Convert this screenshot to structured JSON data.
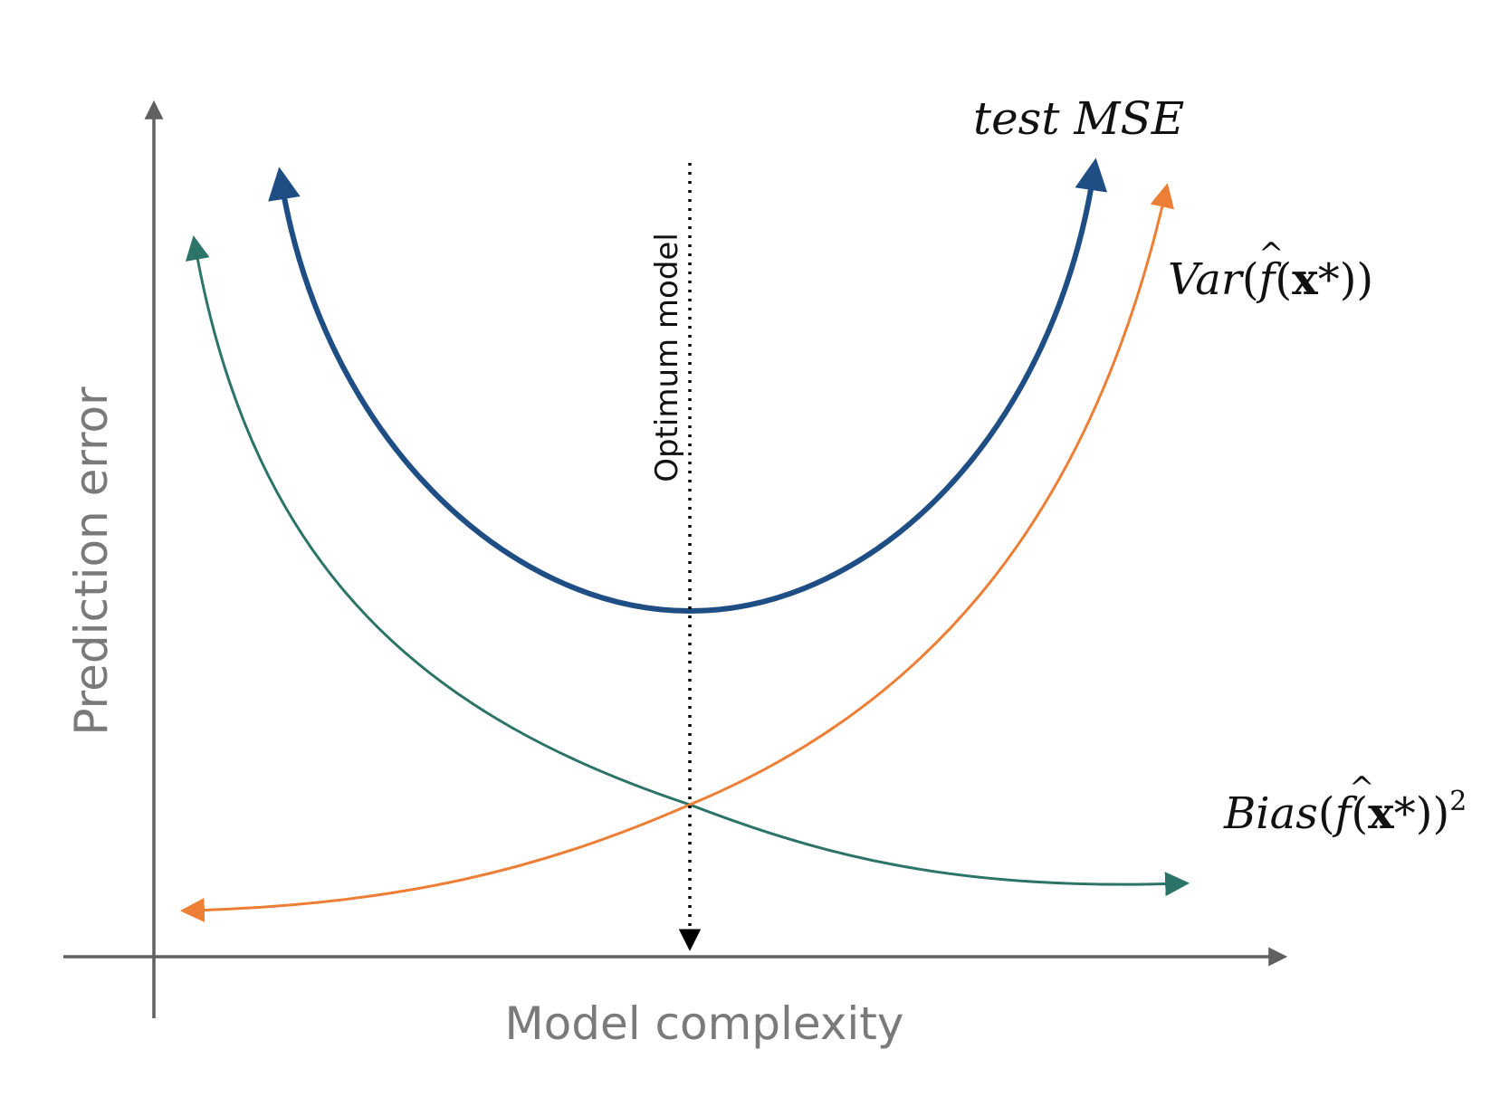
{
  "axes": {
    "y_label": "Prediction error",
    "x_label": "Model complexity",
    "color": "#606060"
  },
  "optimum": {
    "label": "Optimum model",
    "color": "#000000"
  },
  "curves": {
    "test_mse": {
      "label": "test MSE",
      "color": "#1f4e85"
    },
    "variance": {
      "color": "#ec7f35",
      "label_parts": {
        "name": "Var",
        "open": "(",
        "hat_f": "f",
        "hat": "^",
        "paren_x": "(",
        "x": "x",
        "star": "*",
        "close": "))"
      }
    },
    "bias": {
      "color": "#2c7368",
      "label_parts": {
        "name": "Bias",
        "open": "(",
        "hat_f": "f",
        "hat": "^",
        "paren_x": "(",
        "x": "x",
        "star": "*",
        "close": "))",
        "exp": "2"
      }
    }
  }
}
